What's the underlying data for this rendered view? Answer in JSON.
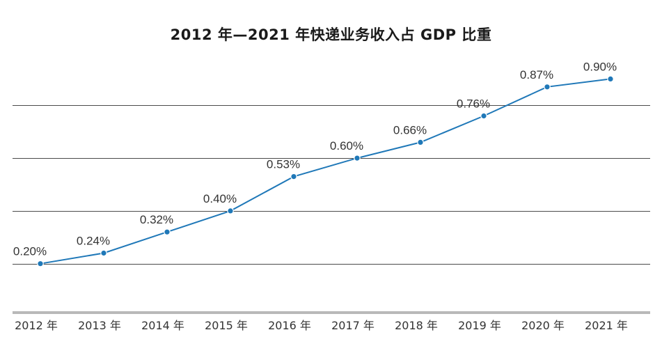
{
  "chart_data": {
    "type": "line",
    "title": "2012 年—2021 年快递业务收入占 GDP 比重",
    "categories": [
      "2012 年",
      "2013 年",
      "2014 年",
      "2015 年",
      "2016 年",
      "2017 年",
      "2018 年",
      "2019 年",
      "2020 年",
      "2021 年"
    ],
    "series": [
      {
        "values": [
          0.2,
          0.24,
          0.32,
          0.4,
          0.53,
          0.6,
          0.66,
          0.76,
          0.87,
          0.9
        ],
        "labels": [
          "0.20%",
          "0.24%",
          "0.32%",
          "0.40%",
          "0.53%",
          "0.60%",
          "0.66%",
          "0.76%",
          "0.87%",
          "0.90%"
        ]
      }
    ],
    "xlabel": "",
    "ylabel": "",
    "ylim": [
      0.0,
      1.0
    ],
    "grid": true,
    "line_color": "#1f78b8"
  }
}
